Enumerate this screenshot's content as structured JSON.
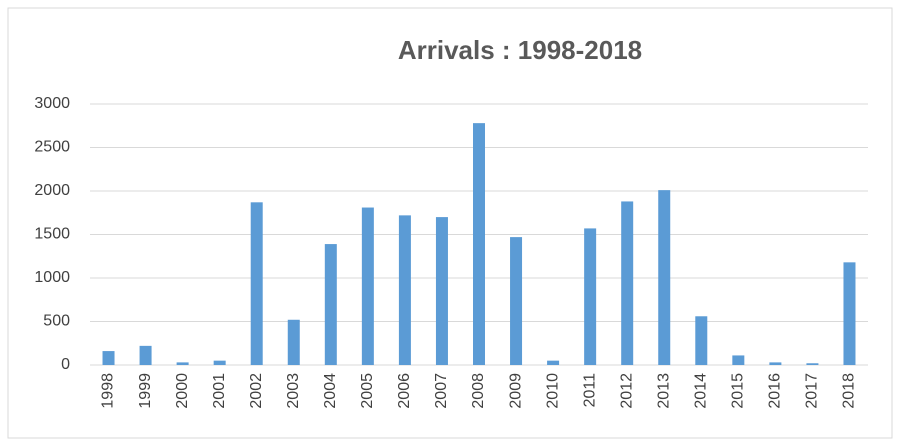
{
  "chart_data": {
    "type": "bar",
    "title": "Arrivals : 1998-2018",
    "categories": [
      "1998",
      "1999",
      "2000",
      "2001",
      "2002",
      "2003",
      "2004",
      "2005",
      "2006",
      "2007",
      "2008",
      "2009",
      "2010",
      "2011",
      "2012",
      "2013",
      "2014",
      "2015",
      "2016",
      "2017",
      "2018"
    ],
    "values": [
      160,
      220,
      30,
      50,
      1870,
      520,
      1390,
      1810,
      1720,
      1700,
      2780,
      1470,
      50,
      1570,
      1880,
      2010,
      560,
      110,
      30,
      20,
      1180
    ],
    "color": "#5b9bd5",
    "ylim": [
      0,
      3000
    ],
    "yticks": [
      0,
      500,
      1000,
      1500,
      2000,
      2500,
      3000
    ],
    "grid": true
  }
}
